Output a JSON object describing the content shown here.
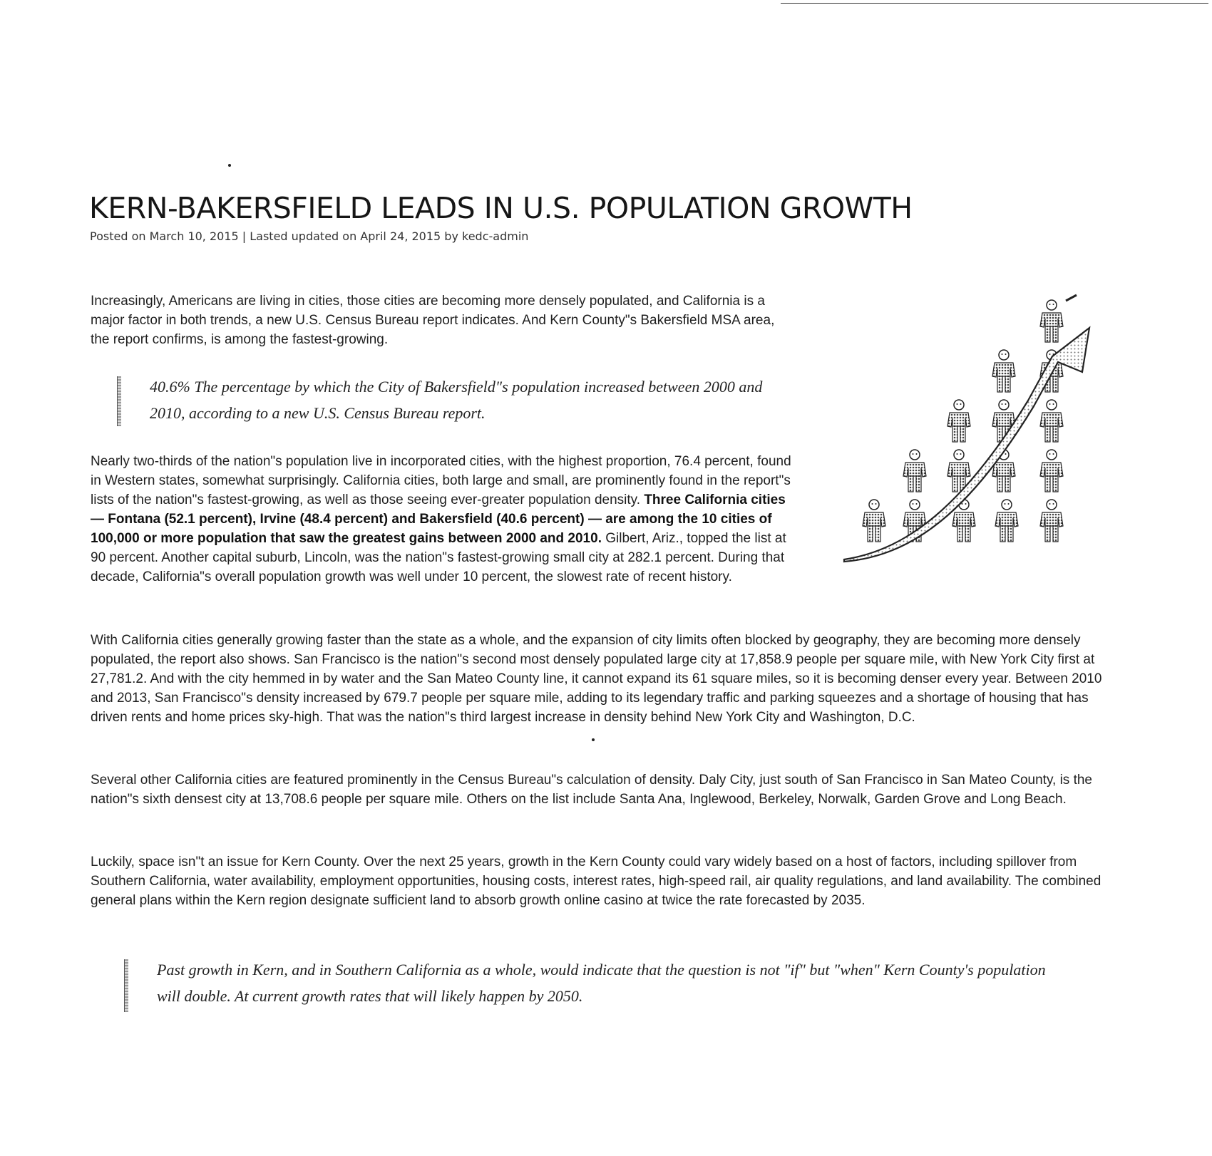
{
  "article": {
    "title": "KERN-BAKERSFIELD LEADS IN U.S. POPULATION GROWTH",
    "byline": "Posted on March 10, 2015 | Lasted updated on April 24, 2015 by kedc-admin",
    "intro": "Increasingly, Americans are living in cities, those cities are becoming more densely populated, and California is a major factor in both trends, a new U.S. Census Bureau report indicates. And Kern County\"s Bakersfield MSA area, the report confirms, is among the fastest-growing.",
    "pullquote_1": "40.6% The percentage by which the City of Bakersfield\"s population increased between 2000 and 2010, according to a new U.S. Census Bureau report.",
    "para2_a": "Nearly two-thirds of the nation\"s population live in incorporated cities, with the highest proportion, 76.4 percent, found in Western states, somewhat surprisingly. California cities, both large and small, are prominently found in the report\"s lists of the nation\"s fastest-growing, as well as those seeing ever-greater population density. ",
    "para2_bold": "Three California cities — Fontana (52.1 percent), Irvine (48.4 percent) and Bakersfield (40.6 percent) — are among the 10 cities of 100,000 or more population that saw the greatest gains between 2000 and 2010.",
    "para2_b": " Gilbert, Ariz., topped the list at 90 percent. Another capital suburb, Lincoln, was the nation\"s fastest-growing small city at 282.1 percent. During that decade, California\"s overall population growth was well under 10 percent, the slowest rate of recent history.",
    "para3": "With California cities generally growing faster than the state as a whole, and the expansion of city limits often blocked by geography, they are becoming more densely populated, the report also shows. San Francisco is the nation\"s second most densely populated large city at 17,858.9 people per square mile, with New York City first at 27,781.2. And with the city hemmed in by water and the San Mateo County line, it cannot expand its 61 square miles, so it is becoming denser every year. Between 2010 and 2013, San Francisco\"s density increased by 679.7 people per square mile, adding to its legendary traffic and parking squeezes and a shortage of housing that has driven rents and home prices sky-high. That was the nation\"s third largest increase in density behind New York City and Washington, D.C.",
    "para4": "Several other California cities are featured prominently in the Census Bureau\"s calculation of density. Daly City, just south of San Francisco in San Mateo County, is the nation\"s sixth densest city at 13,708.6 people per square mile. Others on the list include Santa Ana, Inglewood, Berkeley, Norwalk, Garden Grove and Long Beach.",
    "para5": "Luckily, space isn\"t an issue for Kern County. Over the next 25 years, growth in the Kern County could vary widely based on a host of factors, including spillover from Southern California, water availability, employment opportunities, housing costs, interest rates, high-speed rail, air quality regulations, and land availability. The combined general plans within the Kern region designate sufficient land to absorb growth online casino at twice the rate forecasted by 2035.",
    "pullquote_2": "Past growth in Kern, and in Southern California as a whole, would indicate that the question is not \"if\" but \"when\" Kern County's population will double. At current growth rates that will likely happen by 2050."
  },
  "graphic": {
    "icon": "population-growth-people-arrow-icon"
  }
}
